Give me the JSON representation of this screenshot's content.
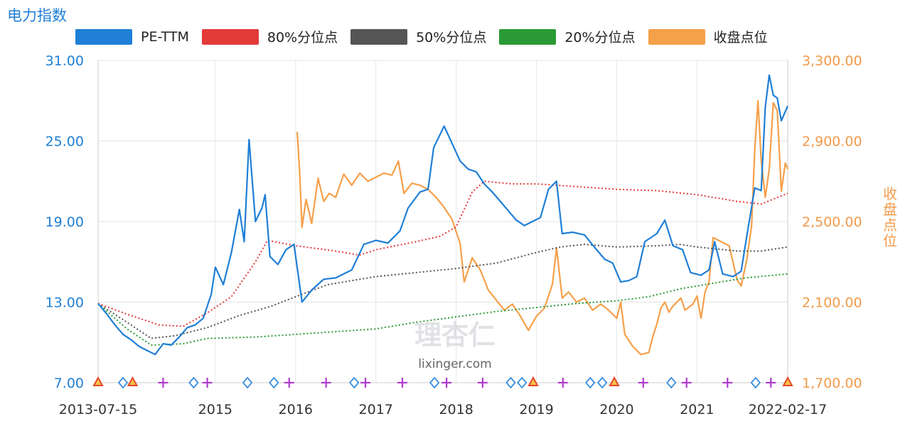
{
  "title": "电力指数",
  "right_axis_label": "收盘点位",
  "legend": [
    {
      "label": "PE-TTM",
      "color": "#1f7fd6"
    },
    {
      "label": "80%分位点",
      "color": "#e33a3a"
    },
    {
      "label": "50%分位点",
      "color": "#555555"
    },
    {
      "label": "20%分位点",
      "color": "#2a9a35"
    },
    {
      "label": "收盘点位",
      "color": "#f5a04a"
    }
  ],
  "watermark": {
    "logo": "理杏仁",
    "url": "lixinger.com"
  },
  "chart_data": {
    "type": "line",
    "title": "电力指数",
    "x_range": [
      "2013-07-15",
      "2022-02-17"
    ],
    "x_ticks": [
      {
        "label": "2013-07-15",
        "x": 2013.54
      },
      {
        "label": "2015",
        "x": 2015.0
      },
      {
        "label": "2016",
        "x": 2016.0
      },
      {
        "label": "2017",
        "x": 2017.0
      },
      {
        "label": "2018",
        "x": 2018.0
      },
      {
        "label": "2019",
        "x": 2019.0
      },
      {
        "label": "2020",
        "x": 2020.0
      },
      {
        "label": "2021",
        "x": 2021.0
      },
      {
        "label": "2022-02-17",
        "x": 2022.13
      }
    ],
    "y_left": {
      "ylim": [
        7.0,
        31.0
      ],
      "ticks": [
        "7.00",
        "13.00",
        "19.00",
        "25.00",
        "31.00"
      ]
    },
    "y_right": {
      "label": "收盘点位",
      "ylim": [
        1700.0,
        3300.0
      ],
      "ticks": [
        "1,700.00",
        "2,100.00",
        "2,500.00",
        "2,900.00",
        "3,300.00"
      ]
    },
    "grid": true,
    "legend_position": "top",
    "series": [
      {
        "name": "PE-TTM",
        "axis": "left",
        "color": "#1f7fd6",
        "style": "solid",
        "points": [
          [
            2013.54,
            12.9
          ],
          [
            2013.65,
            12.1
          ],
          [
            2013.75,
            11.3
          ],
          [
            2013.85,
            10.6
          ],
          [
            2013.95,
            10.2
          ],
          [
            2014.05,
            9.7
          ],
          [
            2014.15,
            9.4
          ],
          [
            2014.25,
            9.1
          ],
          [
            2014.35,
            9.9
          ],
          [
            2014.45,
            9.8
          ],
          [
            2014.55,
            10.4
          ],
          [
            2014.65,
            11.1
          ],
          [
            2014.75,
            11.3
          ],
          [
            2014.85,
            11.8
          ],
          [
            2014.95,
            13.6
          ],
          [
            2015.0,
            15.6
          ],
          [
            2015.1,
            14.3
          ],
          [
            2015.2,
            16.7
          ],
          [
            2015.3,
            19.9
          ],
          [
            2015.36,
            17.5
          ],
          [
            2015.42,
            25.1
          ],
          [
            2015.5,
            19.0
          ],
          [
            2015.58,
            20.0
          ],
          [
            2015.62,
            21.0
          ],
          [
            2015.68,
            16.4
          ],
          [
            2015.78,
            15.8
          ],
          [
            2015.88,
            16.9
          ],
          [
            2015.98,
            17.3
          ],
          [
            2016.08,
            13.0
          ],
          [
            2016.2,
            13.9
          ],
          [
            2016.35,
            14.7
          ],
          [
            2016.5,
            14.8
          ],
          [
            2016.7,
            15.4
          ],
          [
            2016.85,
            17.3
          ],
          [
            2017.0,
            17.6
          ],
          [
            2017.15,
            17.4
          ],
          [
            2017.3,
            18.3
          ],
          [
            2017.4,
            20.0
          ],
          [
            2017.55,
            21.2
          ],
          [
            2017.65,
            21.4
          ],
          [
            2017.72,
            24.5
          ],
          [
            2017.85,
            26.1
          ],
          [
            2017.95,
            24.8
          ],
          [
            2018.05,
            23.5
          ],
          [
            2018.15,
            22.9
          ],
          [
            2018.25,
            22.7
          ],
          [
            2018.35,
            21.8
          ],
          [
            2018.45,
            21.2
          ],
          [
            2018.55,
            20.5
          ],
          [
            2018.65,
            19.8
          ],
          [
            2018.75,
            19.1
          ],
          [
            2018.85,
            18.7
          ],
          [
            2018.95,
            19.0
          ],
          [
            2019.05,
            19.3
          ],
          [
            2019.15,
            21.4
          ],
          [
            2019.25,
            22.0
          ],
          [
            2019.32,
            18.1
          ],
          [
            2019.45,
            18.2
          ],
          [
            2019.6,
            18.0
          ],
          [
            2019.72,
            17.1
          ],
          [
            2019.85,
            16.2
          ],
          [
            2019.95,
            15.9
          ],
          [
            2020.05,
            14.5
          ],
          [
            2020.15,
            14.6
          ],
          [
            2020.25,
            14.9
          ],
          [
            2020.35,
            17.5
          ],
          [
            2020.5,
            18.1
          ],
          [
            2020.6,
            19.1
          ],
          [
            2020.7,
            17.2
          ],
          [
            2020.82,
            16.9
          ],
          [
            2020.92,
            15.2
          ],
          [
            2021.05,
            15.0
          ],
          [
            2021.15,
            15.4
          ],
          [
            2021.22,
            17.5
          ],
          [
            2021.32,
            15.1
          ],
          [
            2021.45,
            14.9
          ],
          [
            2021.55,
            15.3
          ],
          [
            2021.62,
            17.9
          ],
          [
            2021.72,
            21.5
          ],
          [
            2021.8,
            21.3
          ],
          [
            2021.85,
            27.5
          ],
          [
            2021.9,
            29.9
          ],
          [
            2021.95,
            28.4
          ],
          [
            2022.0,
            28.2
          ],
          [
            2022.05,
            26.5
          ],
          [
            2022.13,
            27.6
          ]
        ]
      },
      {
        "name": "80%分位点",
        "axis": "left",
        "color": "#e33a3a",
        "style": "dotted",
        "points": [
          [
            2013.54,
            12.9
          ],
          [
            2013.9,
            12.1
          ],
          [
            2014.3,
            11.3
          ],
          [
            2014.6,
            11.2
          ],
          [
            2014.9,
            12.2
          ],
          [
            2015.2,
            13.4
          ],
          [
            2015.5,
            16.0
          ],
          [
            2015.65,
            17.6
          ],
          [
            2016.0,
            17.2
          ],
          [
            2016.5,
            16.8
          ],
          [
            2016.8,
            16.5
          ],
          [
            2017.0,
            16.9
          ],
          [
            2017.5,
            17.5
          ],
          [
            2017.8,
            17.9
          ],
          [
            2018.0,
            18.6
          ],
          [
            2018.2,
            21.2
          ],
          [
            2018.35,
            22.0
          ],
          [
            2018.7,
            21.8
          ],
          [
            2019.0,
            21.8
          ],
          [
            2019.5,
            21.6
          ],
          [
            2020.0,
            21.4
          ],
          [
            2020.5,
            21.3
          ],
          [
            2021.0,
            21.0
          ],
          [
            2021.5,
            20.5
          ],
          [
            2021.8,
            20.3
          ],
          [
            2022.13,
            21.1
          ]
        ]
      },
      {
        "name": "50%分位点",
        "axis": "left",
        "color": "#555555",
        "style": "dotted",
        "points": [
          [
            2013.54,
            12.9
          ],
          [
            2013.9,
            11.5
          ],
          [
            2014.2,
            10.3
          ],
          [
            2014.5,
            10.5
          ],
          [
            2014.9,
            11.1
          ],
          [
            2015.3,
            12.0
          ],
          [
            2015.7,
            12.7
          ],
          [
            2016.0,
            13.4
          ],
          [
            2016.4,
            14.3
          ],
          [
            2016.8,
            14.7
          ],
          [
            2017.0,
            14.9
          ],
          [
            2017.5,
            15.2
          ],
          [
            2018.0,
            15.5
          ],
          [
            2018.5,
            15.9
          ],
          [
            2019.0,
            16.7
          ],
          [
            2019.3,
            17.1
          ],
          [
            2019.6,
            17.3
          ],
          [
            2020.0,
            17.1
          ],
          [
            2020.5,
            17.2
          ],
          [
            2020.8,
            17.3
          ],
          [
            2021.0,
            17.1
          ],
          [
            2021.5,
            16.8
          ],
          [
            2021.8,
            16.8
          ],
          [
            2022.13,
            17.1
          ]
        ]
      },
      {
        "name": "20%分位点",
        "axis": "left",
        "color": "#2a9a35",
        "style": "dotted",
        "points": [
          [
            2013.54,
            12.9
          ],
          [
            2013.9,
            11.0
          ],
          [
            2014.2,
            9.8
          ],
          [
            2014.6,
            9.9
          ],
          [
            2014.9,
            10.3
          ],
          [
            2015.5,
            10.4
          ],
          [
            2016.0,
            10.6
          ],
          [
            2016.5,
            10.8
          ],
          [
            2017.0,
            11.0
          ],
          [
            2017.5,
            11.5
          ],
          [
            2018.0,
            11.9
          ],
          [
            2018.5,
            12.3
          ],
          [
            2019.0,
            12.6
          ],
          [
            2019.5,
            12.9
          ],
          [
            2020.0,
            13.1
          ],
          [
            2020.4,
            13.4
          ],
          [
            2020.8,
            14.0
          ],
          [
            2021.2,
            14.4
          ],
          [
            2021.6,
            14.8
          ],
          [
            2022.13,
            15.1
          ]
        ]
      },
      {
        "name": "收盘点位",
        "axis": "right",
        "color": "#f5a04a",
        "style": "solid",
        "points": [
          [
            2016.02,
            2945
          ],
          [
            2016.05,
            2750
          ],
          [
            2016.08,
            2470
          ],
          [
            2016.13,
            2610
          ],
          [
            2016.2,
            2490
          ],
          [
            2016.28,
            2715
          ],
          [
            2016.35,
            2600
          ],
          [
            2016.42,
            2640
          ],
          [
            2016.5,
            2620
          ],
          [
            2016.6,
            2735
          ],
          [
            2016.7,
            2680
          ],
          [
            2016.8,
            2740
          ],
          [
            2016.9,
            2700
          ],
          [
            2017.0,
            2720
          ],
          [
            2017.1,
            2740
          ],
          [
            2017.2,
            2730
          ],
          [
            2017.28,
            2800
          ],
          [
            2017.35,
            2640
          ],
          [
            2017.45,
            2690
          ],
          [
            2017.55,
            2680
          ],
          [
            2017.65,
            2660
          ],
          [
            2017.75,
            2620
          ],
          [
            2017.85,
            2570
          ],
          [
            2017.95,
            2510
          ],
          [
            2018.05,
            2390
          ],
          [
            2018.1,
            2200
          ],
          [
            2018.2,
            2320
          ],
          [
            2018.3,
            2260
          ],
          [
            2018.4,
            2160
          ],
          [
            2018.5,
            2110
          ],
          [
            2018.6,
            2060
          ],
          [
            2018.7,
            2090
          ],
          [
            2018.8,
            2030
          ],
          [
            2018.9,
            1960
          ],
          [
            2019.0,
            2030
          ],
          [
            2019.1,
            2070
          ],
          [
            2019.2,
            2190
          ],
          [
            2019.25,
            2370
          ],
          [
            2019.32,
            2120
          ],
          [
            2019.4,
            2150
          ],
          [
            2019.5,
            2100
          ],
          [
            2019.6,
            2120
          ],
          [
            2019.7,
            2060
          ],
          [
            2019.8,
            2090
          ],
          [
            2019.9,
            2060
          ],
          [
            2020.0,
            2020
          ],
          [
            2020.05,
            2100
          ],
          [
            2020.1,
            1940
          ],
          [
            2020.2,
            1880
          ],
          [
            2020.3,
            1840
          ],
          [
            2020.4,
            1850
          ],
          [
            2020.45,
            1930
          ],
          [
            2020.5,
            1990
          ],
          [
            2020.55,
            2070
          ],
          [
            2020.6,
            2100
          ],
          [
            2020.65,
            2050
          ],
          [
            2020.7,
            2080
          ],
          [
            2020.8,
            2120
          ],
          [
            2020.85,
            2060
          ],
          [
            2020.95,
            2090
          ],
          [
            2021.0,
            2130
          ],
          [
            2021.05,
            2020
          ],
          [
            2021.1,
            2150
          ],
          [
            2021.15,
            2200
          ],
          [
            2021.2,
            2420
          ],
          [
            2021.3,
            2400
          ],
          [
            2021.4,
            2380
          ],
          [
            2021.5,
            2210
          ],
          [
            2021.55,
            2180
          ],
          [
            2021.62,
            2310
          ],
          [
            2021.68,
            2480
          ],
          [
            2021.72,
            2860
          ],
          [
            2021.76,
            3100
          ],
          [
            2021.8,
            2800
          ],
          [
            2021.85,
            2620
          ],
          [
            2021.9,
            2760
          ],
          [
            2021.95,
            3090
          ],
          [
            2022.0,
            3050
          ],
          [
            2022.05,
            2650
          ],
          [
            2022.1,
            2790
          ],
          [
            2022.13,
            2760
          ]
        ]
      }
    ],
    "markers": [
      {
        "type": "triangle",
        "x": 2013.54,
        "color": "#e34a2a"
      },
      {
        "type": "diamond",
        "x": 2013.85,
        "color": "#3a8fdd"
      },
      {
        "type": "triangle",
        "x": 2013.97,
        "color": "#e34a2a"
      },
      {
        "type": "plus",
        "x": 2014.35,
        "color": "#b03ad0"
      },
      {
        "type": "diamond",
        "x": 2014.73,
        "color": "#3a8fdd"
      },
      {
        "type": "plus",
        "x": 2014.9,
        "color": "#b03ad0"
      },
      {
        "type": "diamond",
        "x": 2015.4,
        "color": "#3a8fdd"
      },
      {
        "type": "diamond",
        "x": 2015.73,
        "color": "#3a8fdd"
      },
      {
        "type": "plus",
        "x": 2015.92,
        "color": "#b03ad0"
      },
      {
        "type": "plus",
        "x": 2016.38,
        "color": "#b03ad0"
      },
      {
        "type": "diamond",
        "x": 2016.73,
        "color": "#3a8fdd"
      },
      {
        "type": "plus",
        "x": 2016.87,
        "color": "#b03ad0"
      },
      {
        "type": "plus",
        "x": 2017.33,
        "color": "#b03ad0"
      },
      {
        "type": "diamond",
        "x": 2017.73,
        "color": "#3a8fdd"
      },
      {
        "type": "plus",
        "x": 2017.88,
        "color": "#b03ad0"
      },
      {
        "type": "plus",
        "x": 2018.33,
        "color": "#b03ad0"
      },
      {
        "type": "diamond",
        "x": 2018.68,
        "color": "#3a8fdd"
      },
      {
        "type": "diamond",
        "x": 2018.82,
        "color": "#3a8fdd"
      },
      {
        "type": "triangle",
        "x": 2018.96,
        "color": "#e34a2a"
      },
      {
        "type": "plus",
        "x": 2019.33,
        "color": "#b03ad0"
      },
      {
        "type": "diamond",
        "x": 2019.67,
        "color": "#3a8fdd"
      },
      {
        "type": "diamond",
        "x": 2019.82,
        "color": "#3a8fdd"
      },
      {
        "type": "triangle",
        "x": 2019.97,
        "color": "#e34a2a"
      },
      {
        "type": "plus",
        "x": 2020.33,
        "color": "#b03ad0"
      },
      {
        "type": "diamond",
        "x": 2020.68,
        "color": "#3a8fdd"
      },
      {
        "type": "plus",
        "x": 2020.87,
        "color": "#b03ad0"
      },
      {
        "type": "plus",
        "x": 2021.38,
        "color": "#b03ad0"
      },
      {
        "type": "diamond",
        "x": 2021.73,
        "color": "#3a8fdd"
      },
      {
        "type": "plus",
        "x": 2021.92,
        "color": "#b03ad0"
      },
      {
        "type": "triangle",
        "x": 2022.13,
        "color": "#e34a2a"
      }
    ]
  }
}
